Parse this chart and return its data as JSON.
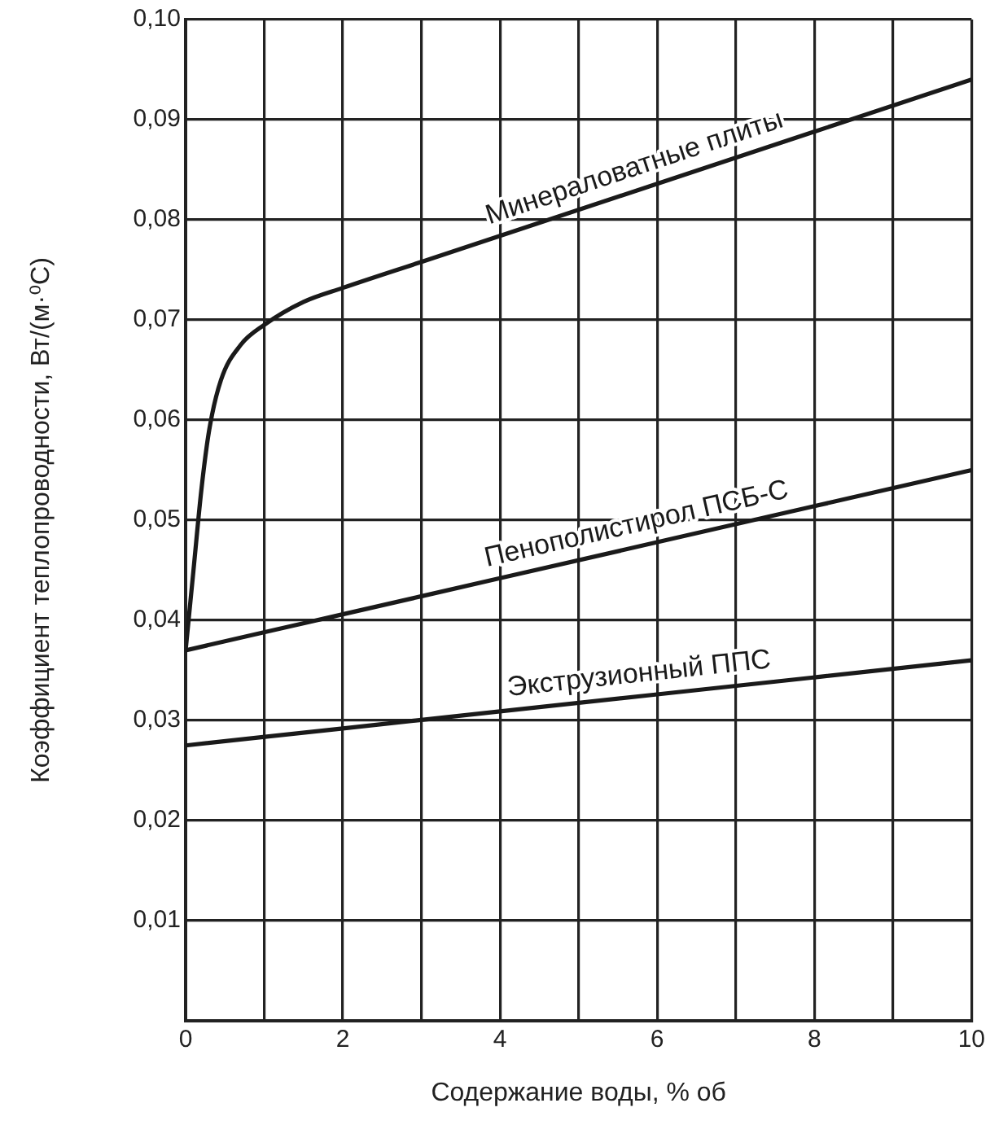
{
  "chart_data": {
    "type": "line",
    "xlabel": "Содержание воды, % об",
    "ylabel": "Коэффициент теплопроводности, Вт/(м·⁰С)",
    "xlim": [
      0,
      10
    ],
    "ylim": [
      0,
      0.1
    ],
    "xticks": [
      0,
      {
        "value": 1,
        "label": null
      },
      2,
      {
        "value": 3,
        "label": null
      },
      4,
      {
        "value": 5,
        "label": null
      },
      6,
      {
        "value": 7,
        "label": null
      },
      8,
      {
        "value": 9,
        "label": null
      },
      10
    ],
    "yticks": [
      {
        "value": 0,
        "label": null
      },
      {
        "value": 0.01,
        "label": "0,01"
      },
      {
        "value": 0.02,
        "label": "0,02"
      },
      {
        "value": 0.03,
        "label": "0,03"
      },
      {
        "value": 0.04,
        "label": "0,04"
      },
      {
        "value": 0.05,
        "label": "0,05"
      },
      {
        "value": 0.06,
        "label": "0,06"
      },
      {
        "value": 0.07,
        "label": "0,07"
      },
      {
        "value": 0.08,
        "label": "0,08"
      },
      {
        "value": 0.09,
        "label": "0,09"
      },
      {
        "value": 0.1,
        "label": "0,10"
      }
    ],
    "grid": true,
    "legend": false,
    "marker": "none",
    "line_style": "solid",
    "series": [
      {
        "name": "Минераловатные плиты",
        "color": "#1a1a1a",
        "x": [
          0,
          0.1,
          0.2,
          0.3,
          0.45,
          0.7,
          1,
          1.5,
          2,
          3,
          4,
          6,
          8,
          10
        ],
        "values": [
          0.037,
          0.045,
          0.053,
          0.059,
          0.064,
          0.0675,
          0.0695,
          0.0718,
          0.0732,
          0.0758,
          0.0784,
          0.0836,
          0.0888,
          0.094
        ]
      },
      {
        "name": "Пенополистирол ПСБ-С",
        "color": "#1a1a1a",
        "x": [
          0,
          2,
          4,
          6,
          8,
          10
        ],
        "values": [
          0.037,
          0.0406,
          0.0442,
          0.0478,
          0.0514,
          0.055
        ]
      },
      {
        "name": "Экструзионный ППС",
        "color": "#1a1a1a",
        "x": [
          0,
          2,
          4,
          6,
          8,
          10
        ],
        "values": [
          0.0275,
          0.0292,
          0.0309,
          0.0326,
          0.0343,
          0.036
        ]
      }
    ]
  }
}
